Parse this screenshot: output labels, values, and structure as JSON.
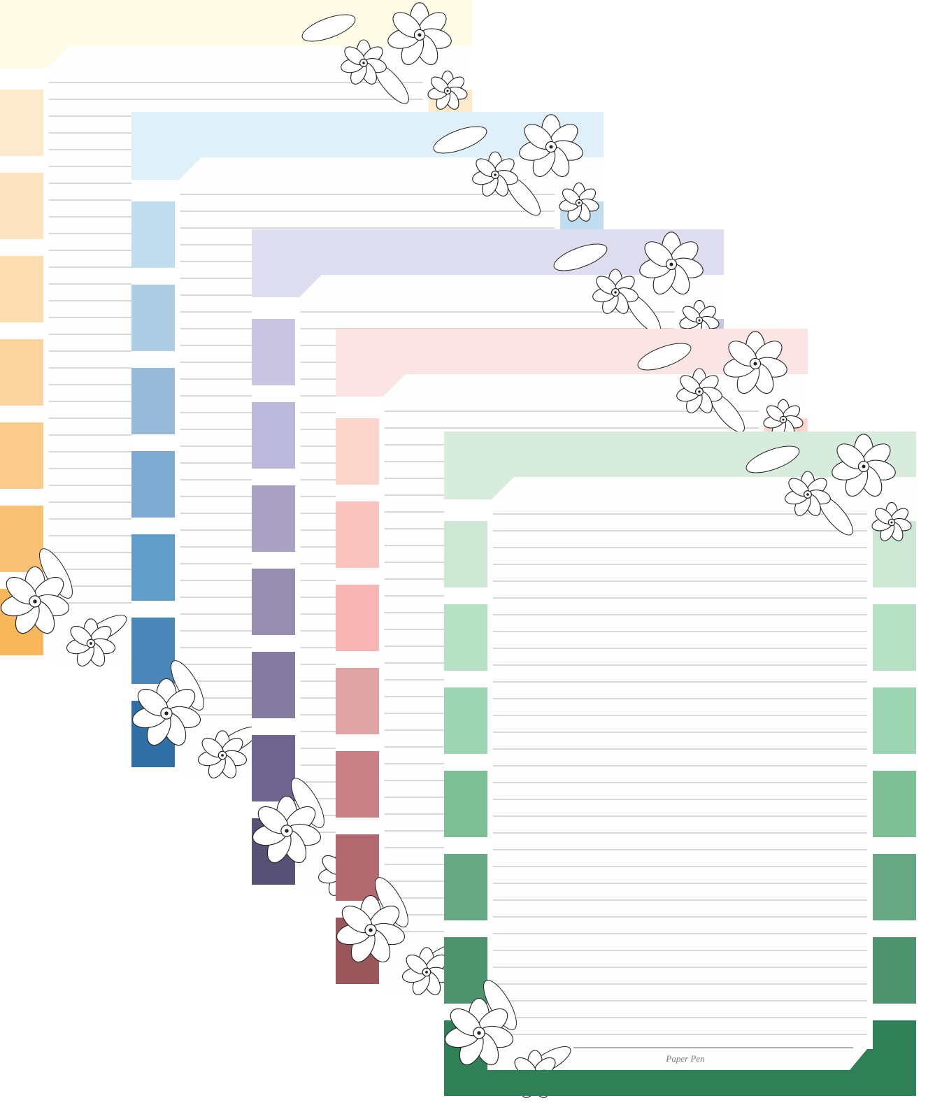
{
  "watermark": "Paper Pen"
}
